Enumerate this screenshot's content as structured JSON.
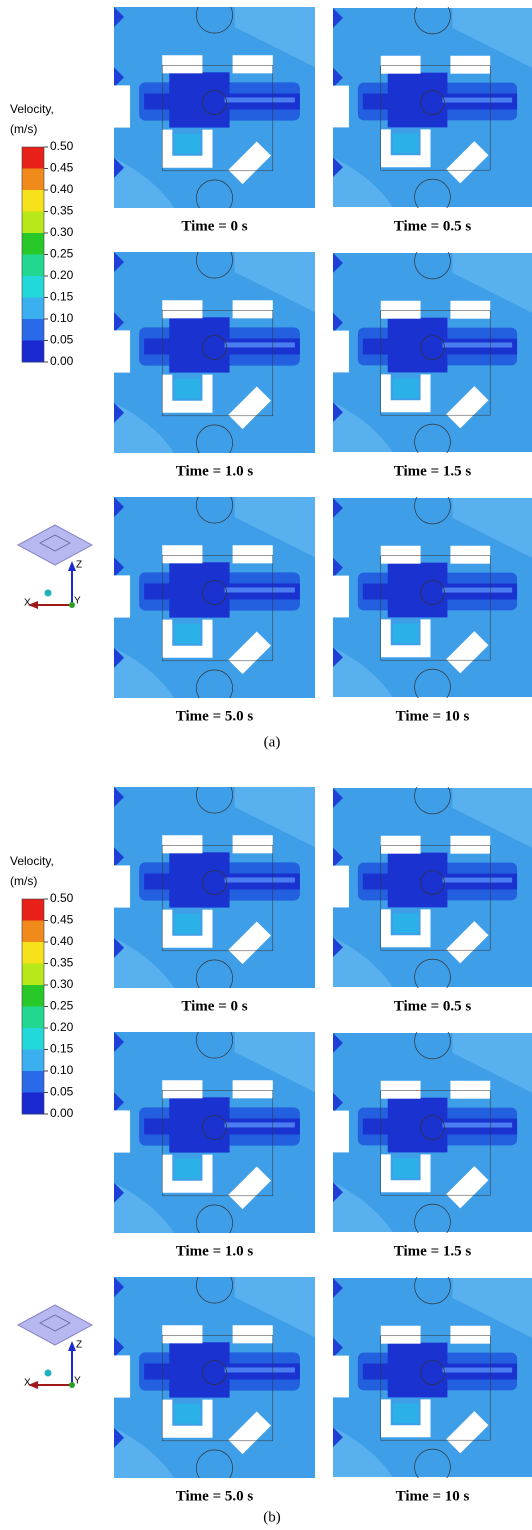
{
  "figures": [
    {
      "legend": {
        "title": [
          "Velocity,",
          "(m/s)"
        ],
        "labels": [
          "0.50",
          "0.45",
          "0.40",
          "0.35",
          "0.30",
          "0.25",
          "0.20",
          "0.15",
          "0.10",
          "0.05",
          "0.00"
        ]
      },
      "panels": [
        {
          "caption": "Time = 0 s"
        },
        {
          "caption": "Time = 0.5 s"
        },
        {
          "caption": "Time = 1.0 s"
        },
        {
          "caption": "Time = 1.5 s"
        },
        {
          "caption": "Time = 5.0 s"
        },
        {
          "caption": "Time = 10 s"
        }
      ],
      "axes": {
        "z": "Z",
        "x": "X",
        "y": "Y"
      },
      "label": "(a)"
    },
    {
      "legend": {
        "title": [
          "Velocity,",
          "(m/s)"
        ],
        "labels": [
          "0.50",
          "0.45",
          "0.40",
          "0.35",
          "0.30",
          "0.25",
          "0.20",
          "0.15",
          "0.10",
          "0.05",
          "0.00"
        ]
      },
      "panels": [
        {
          "caption": "Time = 0 s"
        },
        {
          "caption": "Time = 0.5 s"
        },
        {
          "caption": "Time = 1.0 s"
        },
        {
          "caption": "Time = 1.5 s"
        },
        {
          "caption": "Time = 5.0 s"
        },
        {
          "caption": "Time = 10 s"
        }
      ],
      "axes": {
        "z": "Z",
        "x": "X",
        "y": "Y"
      },
      "label": "(b)"
    }
  ]
}
